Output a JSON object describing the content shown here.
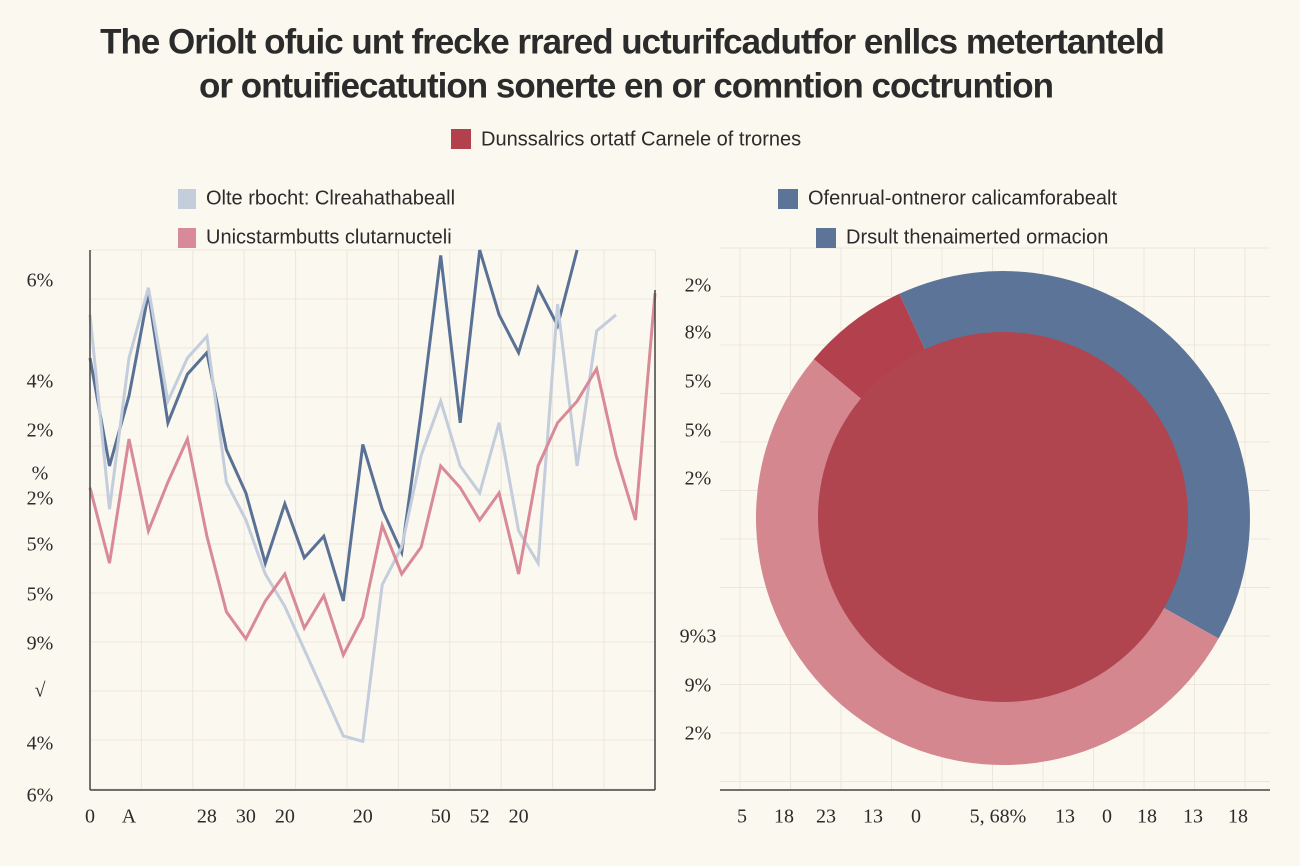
{
  "title": [
    "The Oriolt ofuic unt frecke rrared ucturifcadutfor enllcs metertanteld",
    "or ontuifiecatution sonerte en or comntion coctruntion"
  ],
  "legend": {
    "label": "Dunssalrics ortatf Carnele of trornes",
    "color": "#b3404d"
  },
  "chart_data": [
    {
      "type": "line",
      "categories": [
        "0",
        null,
        "A",
        null,
        null,
        null,
        "28",
        null,
        "30",
        null,
        "20",
        null,
        null,
        null,
        "20",
        null,
        null,
        null,
        "50",
        null,
        "52",
        null,
        "20",
        null,
        null,
        null,
        null,
        null,
        null,
        null
      ],
      "ylim": [
        0,
        100
      ],
      "ylabels": [
        "6%",
        "4%",
        "2%",
        "%",
        "2%",
        "5%",
        "5%",
        "9%",
        "√",
        "4%",
        "6%"
      ],
      "grid": true,
      "series": [
        {
          "color": "#5a7196",
          "values": [
            80,
            60,
            73,
            92,
            68,
            77,
            81,
            63,
            55,
            42,
            53,
            43,
            47,
            35,
            64,
            52,
            44,
            70,
            99,
            68,
            100,
            88,
            81,
            93,
            86,
            100,
            null,
            null,
            null,
            null
          ]
        },
        {
          "name": "Olte rbocht: Clreahathabeall",
          "color": "#c3cddc",
          "values": [
            88,
            52,
            80,
            93,
            72,
            80,
            84,
            57,
            50,
            40,
            34,
            26,
            18,
            10,
            9,
            38,
            45,
            62,
            72,
            60,
            55,
            68,
            48,
            42,
            90,
            60,
            85,
            88,
            null,
            null
          ]
        },
        {
          "name": "Unicstarmbutts clutarnucteli",
          "color": "#d98a98",
          "values": [
            56,
            42,
            65,
            48,
            57,
            65,
            47,
            33,
            28,
            35,
            40,
            30,
            36,
            25,
            32,
            49,
            40,
            45,
            60,
            56,
            50,
            55,
            40,
            60,
            68,
            72,
            78,
            62,
            50,
            92
          ]
        }
      ]
    },
    {
      "type": "pie",
      "legend": [
        {
          "label": "Ofenrual-ontneror calicamforabealt",
          "color": "#5b7497"
        },
        {
          "label": "Drsult thenaimerted ormacion",
          "color": "#5b7497"
        }
      ],
      "values": [
        7,
        40,
        53
      ],
      "colors": [
        "#b3404d",
        "#5b7497",
        "#d4878f"
      ],
      "center_color": "#b04550",
      "ylabels": [
        "2%",
        "8%",
        "5%",
        "5%",
        "2%",
        "9%3",
        "9%",
        "2%"
      ],
      "xlabels": [
        "5",
        "18",
        "23",
        "13",
        "0",
        "5, 68%",
        "13",
        "0",
        "18",
        "13",
        "18"
      ],
      "grid": true
    }
  ]
}
